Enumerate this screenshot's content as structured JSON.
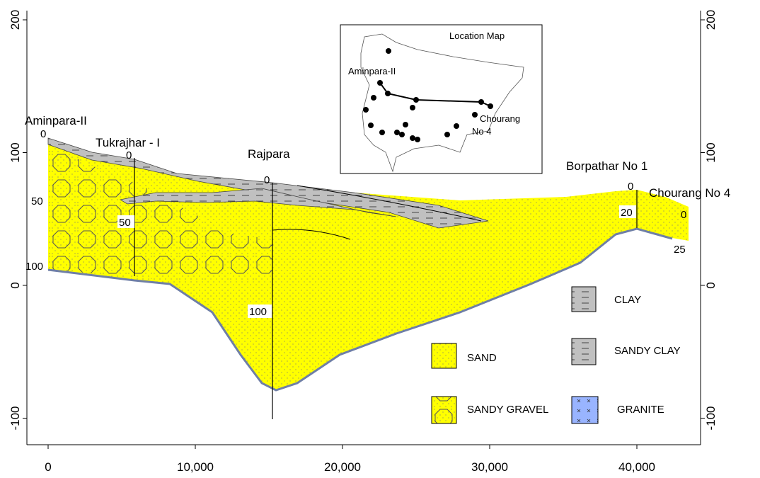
{
  "axes": {
    "x_ticks": [
      0,
      {
        "value": 10000,
        "label": "10,000"
      },
      {
        "value": 20000,
        "label": "20,000"
      },
      {
        "value": 30000,
        "label": "30,000"
      },
      {
        "value": 40000,
        "label": "40,000"
      }
    ],
    "y_ticks": [
      200,
      100,
      0,
      -100
    ]
  },
  "wells": [
    {
      "name": "Aminpara-II",
      "depths": [
        "0",
        "50",
        "100"
      ]
    },
    {
      "name": "Tukrajhar - I",
      "depths": [
        "0",
        "50"
      ]
    },
    {
      "name": "Rajpara",
      "depths": [
        "0",
        "100"
      ]
    },
    {
      "name": "Borpathar No 1",
      "depths": [
        "0",
        "20"
      ]
    },
    {
      "name": "Chourang No 4",
      "depths": [
        "0",
        "25"
      ]
    }
  ],
  "legend": [
    "CLAY",
    "SANDY CLAY",
    "SAND",
    "SANDY GRAVEL",
    "GRANITE"
  ],
  "inset": {
    "title": "Location Map",
    "labels": [
      "Aminpara-II",
      "Chourang",
      "No 4"
    ]
  }
}
